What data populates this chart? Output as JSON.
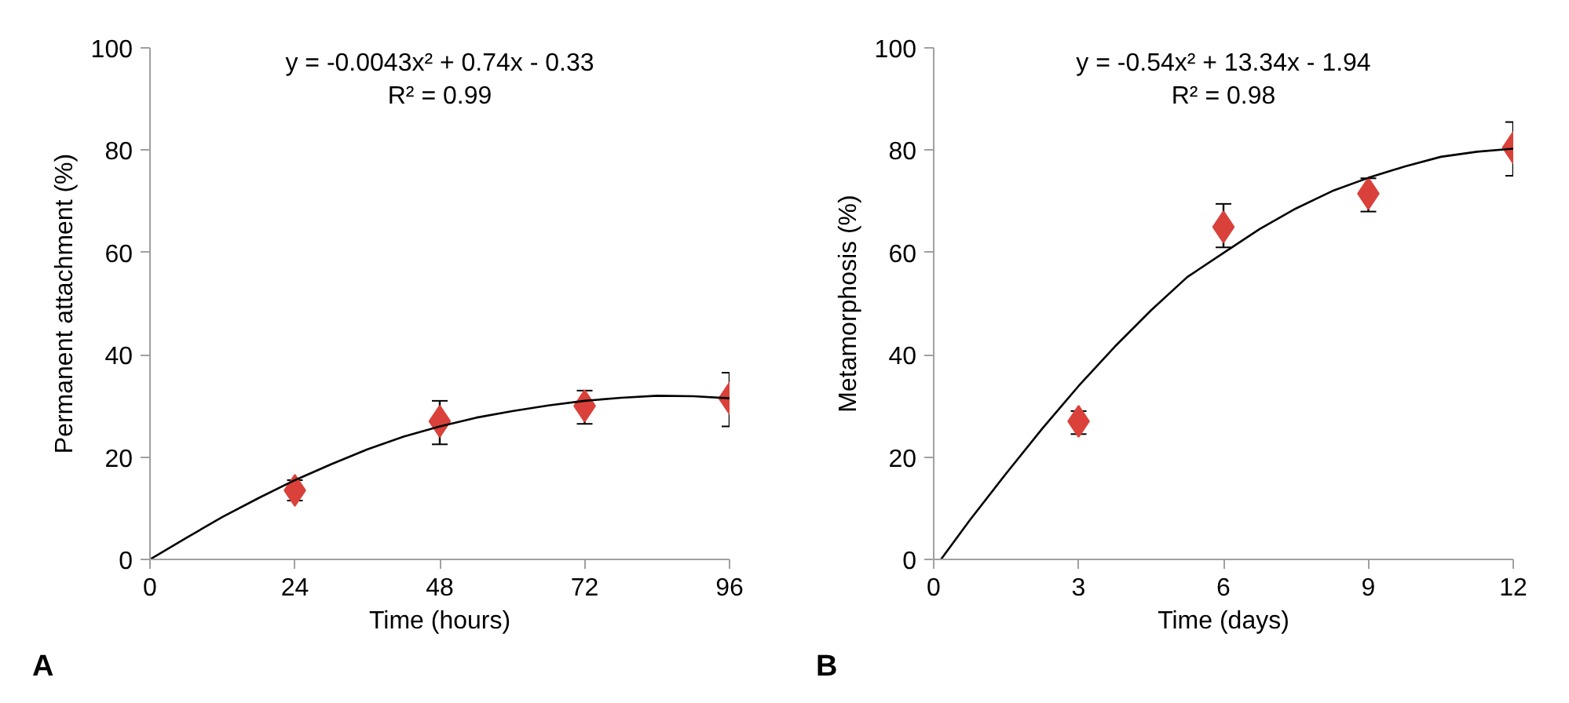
{
  "chart_data": [
    {
      "type": "scatter",
      "xlabel": "Time (hours)",
      "ylabel": "Permanent attachment (%)",
      "annotations": [
        "y = -0.0043x² + 0.74x - 0.33",
        "R² = 0.99",
        "A"
      ],
      "xlim": [
        0,
        96
      ],
      "xticks": [
        0,
        24,
        48,
        72,
        96
      ],
      "ylim": [
        0,
        100
      ],
      "yticks": [
        0,
        20,
        40,
        60,
        80,
        100
      ],
      "grid": false,
      "marker": "diamond",
      "series": [
        {
          "color": "#d9413a",
          "x": [
            24,
            48,
            72,
            96
          ],
          "values": [
            13.5,
            27,
            30,
            31.5
          ],
          "errors": [
            [
              11.5,
              15.5
            ],
            [
              22.5,
              31
            ],
            [
              26.5,
              33
            ],
            [
              26,
              36.5
            ]
          ]
        },
        {
          "type": "line",
          "color": "#000000",
          "marker": "none",
          "line_style": "solid",
          "x": [
            0,
            6,
            12,
            18,
            24,
            30,
            36,
            42,
            48,
            54,
            60,
            66,
            72,
            78,
            84,
            90,
            96
          ],
          "values": [
            0,
            4.2,
            8.3,
            12,
            15.5,
            18.6,
            21.5,
            24,
            26,
            27.7,
            29,
            30.1,
            31,
            31.6,
            32,
            31.9,
            31.5
          ]
        }
      ]
    },
    {
      "type": "scatter",
      "xlabel": "Time (days)",
      "ylabel": "Metamorphosis (%)",
      "annotations": [
        "y = -0.54x² + 13.34x - 1.94",
        "R² = 0.98",
        "B"
      ],
      "xlim": [
        0,
        12
      ],
      "xticks": [
        0,
        3,
        6,
        9,
        12
      ],
      "ylim": [
        0,
        100
      ],
      "yticks": [
        0,
        20,
        40,
        60,
        80,
        100
      ],
      "grid": false,
      "marker": "diamond",
      "series": [
        {
          "color": "#d9413a",
          "x": [
            3,
            6,
            9,
            12
          ],
          "values": [
            27,
            65,
            71.5,
            80.5
          ],
          "errors": [
            [
              24.5,
              29
            ],
            [
              61,
              69.5
            ],
            [
              68,
              74.5
            ],
            [
              75,
              85.5
            ]
          ]
        },
        {
          "type": "line",
          "color": "#000000",
          "marker": "none",
          "line_style": "solid",
          "x": [
            0.15,
            0.75,
            1.5,
            2.25,
            3,
            3.75,
            4.5,
            5.25,
            6,
            6.75,
            7.5,
            8.25,
            9,
            9.75,
            10.5,
            11.25,
            12
          ],
          "values": [
            0,
            7.7,
            16.8,
            25.6,
            33.9,
            41.6,
            48.7,
            55.2,
            59.9,
            64.6,
            68.6,
            72,
            74.6,
            76.8,
            78.7,
            79.7,
            80.3
          ]
        }
      ]
    }
  ]
}
